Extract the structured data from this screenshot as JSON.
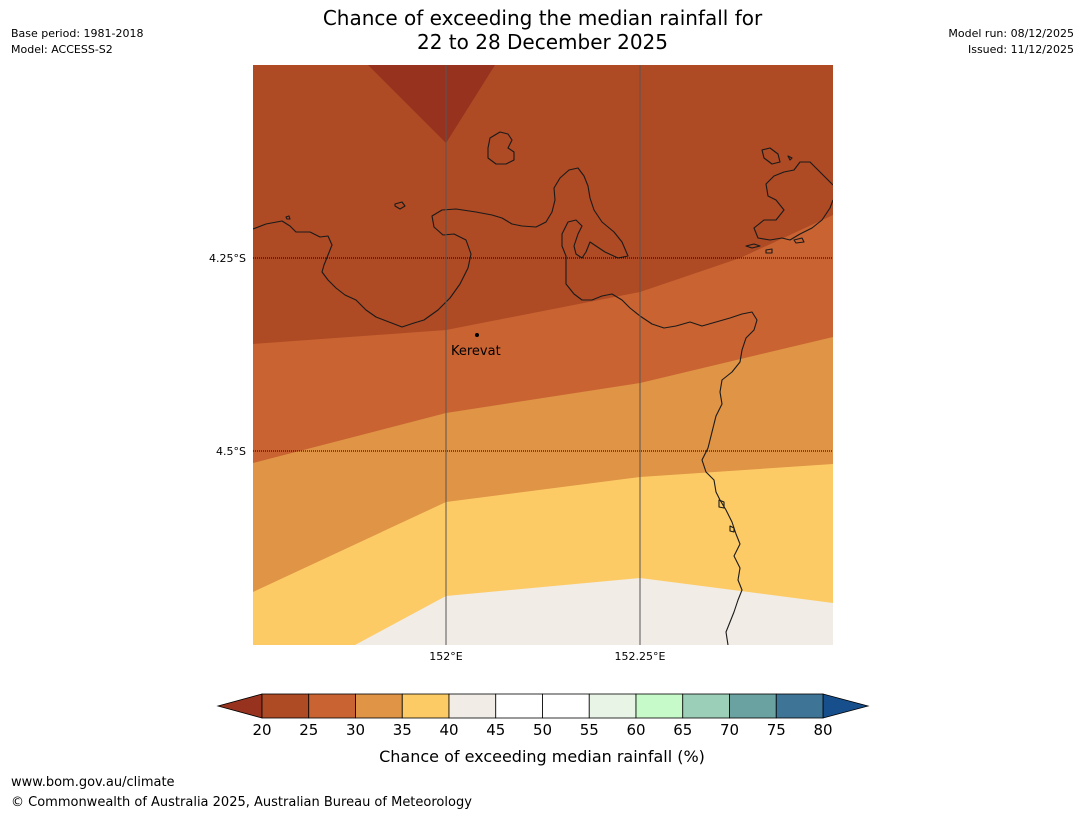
{
  "title": {
    "line1": "Chance of exceeding the median rainfall for",
    "line2": "22 to 28 December 2025"
  },
  "meta_left": {
    "base_period": "Base period: 1981-2018",
    "model": "Model: ACCESS-S2"
  },
  "meta_right": {
    "model_run": "Model run: 08/12/2025",
    "issued": "Issued: 11/12/2025"
  },
  "map": {
    "lat_labels": [
      "4.25°S",
      "4.5°S"
    ],
    "lon_labels": [
      "152°E",
      "152.25°E"
    ],
    "place": {
      "name": "Kerevat"
    },
    "bands": [
      {
        "label": "20-25%",
        "color": "#ae4a24"
      },
      {
        "label": "25-30%",
        "color": "#c96332"
      },
      {
        "label": "30-35%",
        "color": "#df9446"
      },
      {
        "label": "35-40%",
        "color": "#fdcb66"
      },
      {
        "label": "40-45%",
        "color": "#f1ece6"
      }
    ],
    "extreme_color": "#96321e"
  },
  "colorbar": {
    "label": "Chance of exceeding median rainfall (%)",
    "ticks": [
      "20",
      "25",
      "30",
      "35",
      "40",
      "45",
      "50",
      "55",
      "60",
      "65",
      "70",
      "75",
      "80"
    ],
    "colors": [
      "#ae4a24",
      "#c96332",
      "#df9446",
      "#fdcb66",
      "#f1ece6",
      "#ffffff",
      "#ffffff",
      "#e8f5e6",
      "#c6fbc9",
      "#9bcfb7",
      "#6aa1a1",
      "#3e7496"
    ],
    "under_color": "#96321e",
    "over_color": "#174e8c"
  },
  "footer": {
    "url": "www.bom.gov.au/climate",
    "copyright": "© Commonwealth of Australia 2025, Australian Bureau of Meteorology"
  }
}
